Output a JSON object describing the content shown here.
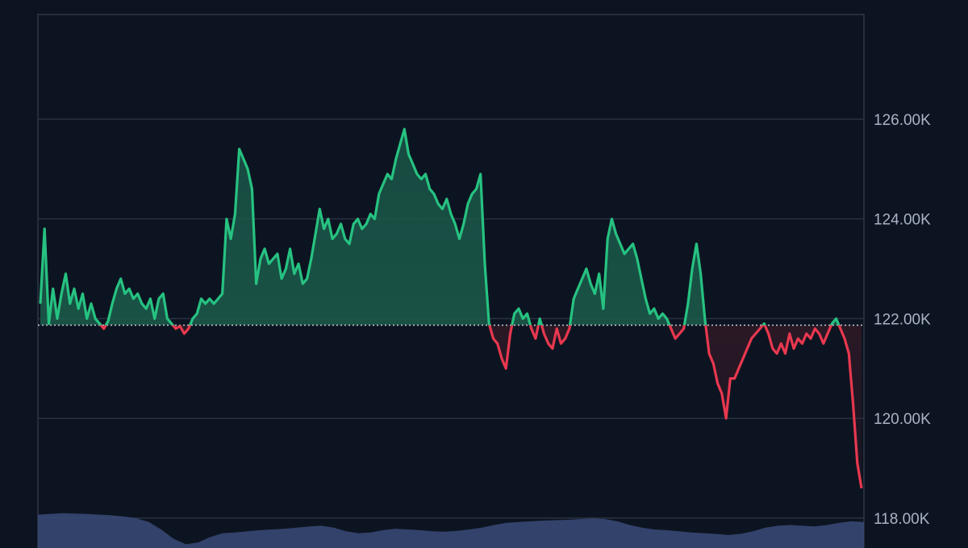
{
  "chart_data": {
    "type": "area",
    "title": "",
    "xlabel": "",
    "ylabel": "",
    "ylim": [
      117.4,
      128.1
    ],
    "baseline": 121.87,
    "grid": true,
    "y_ticks": [
      {
        "value": 126.0,
        "label": "126.00K"
      },
      {
        "value": 124.0,
        "label": "124.00K"
      },
      {
        "value": 122.0,
        "label": "122.00K"
      },
      {
        "value": 120.0,
        "label": "120.00K"
      },
      {
        "value": 118.0,
        "label": "118.00K"
      }
    ],
    "colors": {
      "background": "#0d1421",
      "grid": "#2a3142",
      "above_line": "#26c281",
      "below_line": "#e8384f",
      "above_fill": "#1b5c4b",
      "below_fill": "#4a1c2a",
      "baseline": "#c8ccd6",
      "tick_text": "#aab2c5",
      "volume": "#3a4a78"
    },
    "series": [
      {
        "values": [
          122.3,
          123.8,
          121.9,
          122.6,
          122.0,
          122.5,
          122.9,
          122.3,
          122.6,
          122.2,
          122.5,
          122.0,
          122.3,
          122.0,
          121.9,
          121.8,
          121.95,
          122.3,
          122.6,
          122.8,
          122.5,
          122.6,
          122.4,
          122.5,
          122.3,
          122.2,
          122.4,
          122.0,
          122.4,
          122.5,
          122.0,
          121.9,
          121.8,
          121.85,
          121.7,
          121.8,
          122.0,
          122.1,
          122.4,
          122.3,
          122.4,
          122.3,
          122.4,
          122.5,
          124.0,
          123.6,
          124.1,
          125.4,
          125.2,
          125.0,
          124.6,
          122.7,
          123.2,
          123.4,
          123.1,
          123.2,
          123.3,
          122.8,
          123.0,
          123.4,
          122.9,
          123.1,
          122.7,
          122.8,
          123.2,
          123.7,
          124.2,
          123.8,
          124.0,
          123.6,
          123.7,
          123.9,
          123.6,
          123.5,
          123.9,
          124.0,
          123.8,
          123.9,
          124.1,
          124.0,
          124.5,
          124.7,
          124.9,
          124.8,
          125.2,
          125.5,
          125.8,
          125.3,
          125.1,
          124.9,
          124.8,
          124.9,
          124.6,
          124.5,
          124.3,
          124.2,
          124.4,
          124.1,
          123.9,
          123.6,
          123.9,
          124.3,
          124.5,
          124.6,
          124.9,
          123.1,
          121.9,
          121.6,
          121.5,
          121.2,
          121.0,
          121.7,
          122.1,
          122.2,
          122.0,
          122.1,
          121.8,
          121.6,
          122.0,
          121.7,
          121.5,
          121.4,
          121.8,
          121.5,
          121.6,
          121.8,
          122.4,
          122.6,
          122.8,
          123.0,
          122.7,
          122.5,
          122.9,
          122.2,
          123.6,
          124.0,
          123.7,
          123.5,
          123.3,
          123.4,
          123.5,
          123.2,
          122.8,
          122.4,
          122.1,
          122.2,
          122.0,
          122.1,
          122.0,
          121.8,
          121.6,
          121.7,
          121.8,
          122.3,
          123.0,
          123.5,
          122.9,
          122.0,
          121.3,
          121.1,
          120.7,
          120.5,
          120.0,
          120.8,
          120.8,
          121.0,
          121.2,
          121.4,
          121.6,
          121.7,
          121.8,
          121.9,
          121.7,
          121.4,
          121.3,
          121.5,
          121.3,
          121.7,
          121.4,
          121.6,
          121.5,
          121.7,
          121.6,
          121.8,
          121.7,
          121.5,
          121.7,
          121.9,
          122.0,
          121.8,
          121.6,
          121.3,
          120.3,
          119.1,
          118.6
        ]
      }
    ],
    "volume": [
      0.9,
      0.92,
      0.94,
      0.93,
      0.92,
      0.9,
      0.88,
      0.85,
      0.8,
      0.7,
      0.5,
      0.25,
      0.1,
      0.15,
      0.3,
      0.4,
      0.42,
      0.45,
      0.48,
      0.5,
      0.52,
      0.55,
      0.58,
      0.6,
      0.55,
      0.45,
      0.4,
      0.42,
      0.48,
      0.52,
      0.5,
      0.48,
      0.45,
      0.44,
      0.46,
      0.5,
      0.55,
      0.62,
      0.68,
      0.7,
      0.72,
      0.74,
      0.75,
      0.76,
      0.78,
      0.8,
      0.78,
      0.72,
      0.62,
      0.55,
      0.5,
      0.48,
      0.45,
      0.42,
      0.4,
      0.38,
      0.35,
      0.38,
      0.45,
      0.55,
      0.6,
      0.62,
      0.6,
      0.58,
      0.62,
      0.68,
      0.72,
      0.7
    ]
  }
}
